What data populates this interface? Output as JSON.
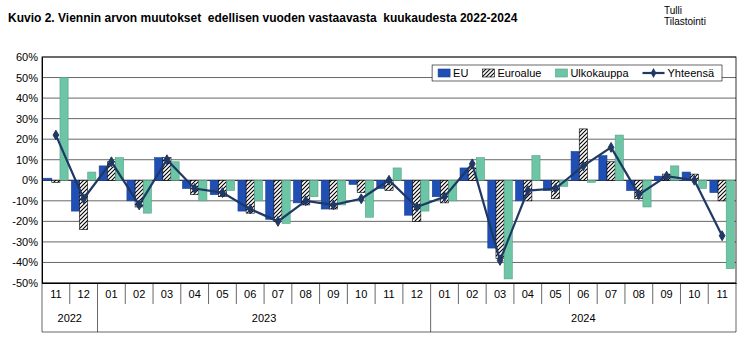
{
  "chart_data": {
    "type": "bar",
    "title": "Kuvio 2. Viennin arvon muutokset  edellisen vuoden vastaavasta  kuukaudesta 2022-2024",
    "source_lines": [
      "Tulli",
      "Tilastointi"
    ],
    "categories": [
      "11",
      "12",
      "01",
      "02",
      "03",
      "04",
      "05",
      "06",
      "07",
      "08",
      "09",
      "10",
      "11",
      "12",
      "01",
      "02",
      "03",
      "04",
      "05",
      "06",
      "07",
      "08",
      "09",
      "10",
      "11"
    ],
    "years": [
      "2022",
      "2022",
      "2023",
      "2023",
      "2023",
      "2023",
      "2023",
      "2023",
      "2023",
      "2023",
      "2023",
      "2023",
      "2023",
      "2023",
      "2024",
      "2024",
      "2024",
      "2024",
      "2024",
      "2024",
      "2024",
      "2024",
      "2024",
      "2024",
      "2024"
    ],
    "series": [
      {
        "name": "EU",
        "type": "bar",
        "color": "#1f4fb4",
        "values": [
          1,
          -15,
          7,
          -10,
          11,
          -4,
          -7,
          -15,
          -19,
          -11,
          -14,
          -2,
          -4,
          -17,
          -8,
          6,
          -33,
          -10,
          -5,
          14,
          12,
          -5,
          2,
          4,
          -6
        ]
      },
      {
        "name": "Euroalue",
        "type": "bar",
        "color": "#000000",
        "line_style": "hatched",
        "values": [
          -1,
          -24,
          9,
          -13,
          11,
          -7,
          -8,
          -16,
          -20,
          -12,
          -14,
          -6,
          -5,
          -20,
          -11,
          6,
          -38,
          -10,
          -9,
          25,
          9,
          -9,
          3,
          3,
          -10
        ]
      },
      {
        "name": "Ulkokauppa",
        "type": "bar",
        "color": "#6cc6a6",
        "values": [
          50,
          4,
          11,
          -16,
          9,
          -10,
          -5,
          -10,
          -21,
          -8,
          -12,
          -18,
          6,
          -15,
          -10,
          11,
          -48,
          12,
          -3,
          -1,
          22,
          -13,
          7,
          -4,
          -43
        ]
      },
      {
        "name": "Yhteensä",
        "type": "line",
        "color": "#1f3864",
        "marker": "diamond",
        "values": [
          22,
          -9,
          9,
          -12,
          10,
          -4,
          -6,
          -14,
          -20,
          -10,
          -12,
          -9,
          0,
          -13,
          -8,
          8,
          -39,
          -5,
          -4,
          7,
          16,
          -7,
          2,
          0,
          -27
        ]
      }
    ],
    "ylim": [
      -50,
      60
    ],
    "yticks": [
      {
        "value": -50,
        "label": "-50%"
      },
      {
        "value": -40,
        "label": "-40%"
      },
      {
        "value": -30,
        "label": "-30%"
      },
      {
        "value": -20,
        "label": "-20%"
      },
      {
        "value": -10,
        "label": "-10%"
      },
      {
        "value": 0,
        "label": "0%"
      },
      {
        "value": 10,
        "label": "10%"
      },
      {
        "value": 20,
        "label": "20%"
      },
      {
        "value": 30,
        "label": "30%"
      },
      {
        "value": 40,
        "label": "40%"
      },
      {
        "value": 50,
        "label": "50%"
      },
      {
        "value": 60,
        "label": "60%"
      }
    ],
    "grid": true,
    "legend": "upper right"
  }
}
